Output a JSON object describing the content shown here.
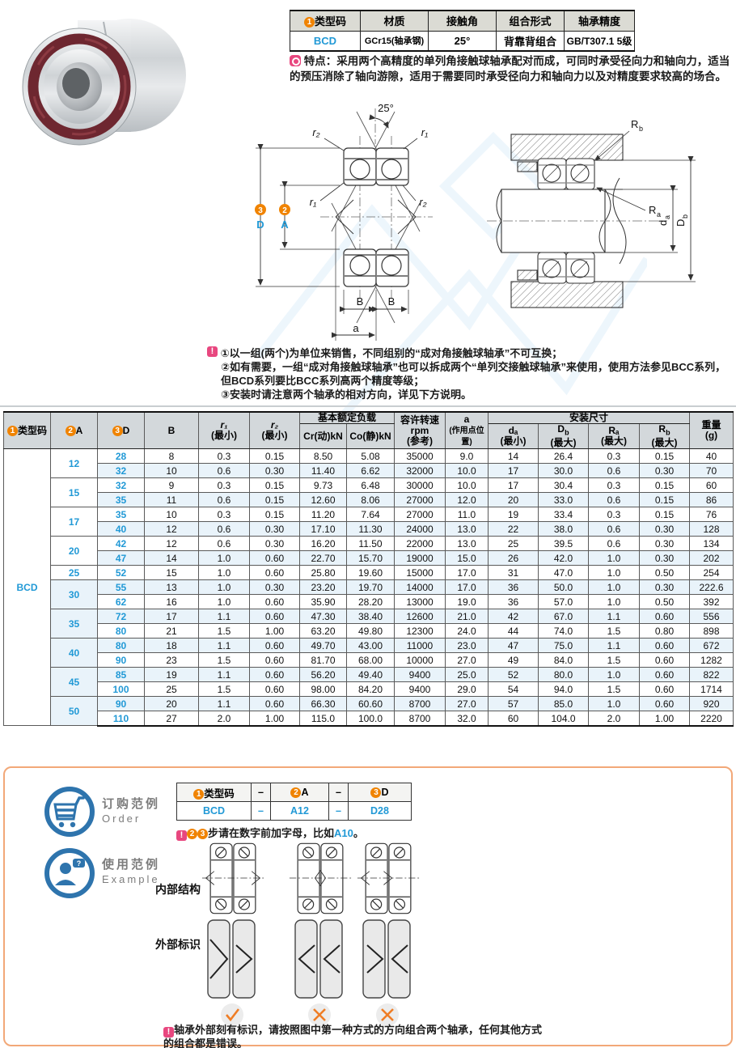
{
  "colors": {
    "accent_blue": "#2199d6",
    "accent_orange": "#f08300",
    "warn_pink": "#e8477f",
    "header_gray": "#d3d8db",
    "row_alt": "#e9f3fa",
    "frame_orange": "#f2a878",
    "icon_blue": "#2e74ad",
    "mark_orange": "#ef7d25",
    "seal_red": "#6e2730"
  },
  "info_table": {
    "headers": [
      {
        "num": "1",
        "text": "类型码"
      },
      {
        "text": "材质"
      },
      {
        "text": "接触角"
      },
      {
        "text": "组合形式"
      },
      {
        "text": "轴承精度"
      }
    ],
    "values": [
      "BCD",
      "GCr15(轴承钢)",
      "25°",
      "背靠背组合",
      "GB/T307.1 5级"
    ]
  },
  "features": {
    "text": "特点：采用两个高精度的单列角接触球轴承配对而成，可同时承受径向力和轴向力，适当的预压消除了轴向游隙，适用于需要同时承受径向力和轴向力以及对精度要求较高的场合。"
  },
  "notes": [
    "①以一组(两个)为单位来销售，不同组别的“成对角接触球轴承”不可互换；",
    "②如有需要，一组“成对角接触球轴承”也可以拆成两个“单列交接触球轴承”来使用，使用方法参见BCC系列，但BCD系列要比BCC系列高两个精度等级；",
    "③安装时请注意两个轴承的相对方向，详见下方说明。"
  ],
  "diagrams": {
    "left": {
      "angle": "25°",
      "r2_top": "r₂",
      "r1_top": "r₁",
      "r1_mid": "r₁",
      "r2_mid": "r₂",
      "dim_D_num": "3",
      "dim_D": "D",
      "dim_A_num": "2",
      "dim_A": "A",
      "B1": "B",
      "B2": "B",
      "a": "a"
    },
    "right": {
      "Rb_base": "R",
      "Rb_sub": "b",
      "Ra_base": "R",
      "Ra_sub": "a",
      "da_base": "d",
      "da_sub": "a",
      "Db_base": "D",
      "Db_sub": "b"
    }
  },
  "main_table": {
    "columns": {
      "type_num": "1",
      "type_label": "类型码",
      "A_num": "2",
      "A_label": "A",
      "D_num": "3",
      "D_label": "D",
      "B": "B",
      "r1": "r₁",
      "r1_min": "(最小)",
      "r2": "r₂",
      "r2_min": "(最小)",
      "load_group": "基本额定负载",
      "cr": "Cr(动)kN",
      "co": "Co(静)kN",
      "rpm_l1": "容许转速",
      "rpm_l2": "rpm",
      "rpm_l3": "(参考)",
      "a_l1": "a",
      "a_l2": "(作用点位置)",
      "mount_group": "安装尺寸",
      "da": "dₐ",
      "da_min": "(最小)",
      "Db_base": "D",
      "Db_sub": "b",
      "Db_max": "(最大)",
      "Ra": "Rₐ",
      "Ra_max": "(最大)",
      "Rb_base": "R",
      "Rb_sub": "b",
      "Rb_max": "(最大)",
      "weight_l1": "重量",
      "weight_l2": "(g)"
    },
    "type_code": "BCD",
    "row_groups": [
      {
        "A": "12",
        "rows": [
          [
            "28",
            "8",
            "0.3",
            "0.15",
            "8.50",
            "5.08",
            "35000",
            "9.0",
            "14",
            "26.4",
            "0.3",
            "0.15",
            "40"
          ],
          [
            "32",
            "10",
            "0.6",
            "0.30",
            "11.40",
            "6.62",
            "32000",
            "10.0",
            "17",
            "30.0",
            "0.6",
            "0.30",
            "70"
          ]
        ]
      },
      {
        "A": "15",
        "rows": [
          [
            "32",
            "9",
            "0.3",
            "0.15",
            "9.73",
            "6.48",
            "30000",
            "10.0",
            "17",
            "30.4",
            "0.3",
            "0.15",
            "60"
          ],
          [
            "35",
            "11",
            "0.6",
            "0.15",
            "12.60",
            "8.06",
            "27000",
            "12.0",
            "20",
            "33.0",
            "0.6",
            "0.15",
            "86"
          ]
        ]
      },
      {
        "A": "17",
        "rows": [
          [
            "35",
            "10",
            "0.3",
            "0.15",
            "11.20",
            "7.64",
            "27000",
            "11.0",
            "19",
            "33.4",
            "0.3",
            "0.15",
            "76"
          ],
          [
            "40",
            "12",
            "0.6",
            "0.30",
            "17.10",
            "11.30",
            "24000",
            "13.0",
            "22",
            "38.0",
            "0.6",
            "0.30",
            "128"
          ]
        ]
      },
      {
        "A": "20",
        "rows": [
          [
            "42",
            "12",
            "0.6",
            "0.30",
            "16.20",
            "11.50",
            "22000",
            "13.0",
            "25",
            "39.5",
            "0.6",
            "0.30",
            "134"
          ],
          [
            "47",
            "14",
            "1.0",
            "0.60",
            "22.70",
            "15.70",
            "19000",
            "15.0",
            "26",
            "42.0",
            "1.0",
            "0.30",
            "202"
          ]
        ]
      },
      {
        "A": "25",
        "rows": [
          [
            "52",
            "15",
            "1.0",
            "0.60",
            "25.80",
            "19.60",
            "15000",
            "17.0",
            "31",
            "47.0",
            "1.0",
            "0.50",
            "254"
          ]
        ]
      },
      {
        "A": "30",
        "rows": [
          [
            "55",
            "13",
            "1.0",
            "0.30",
            "23.20",
            "19.70",
            "14000",
            "17.0",
            "36",
            "50.0",
            "1.0",
            "0.30",
            "222.6"
          ],
          [
            "62",
            "16",
            "1.0",
            "0.60",
            "35.90",
            "28.20",
            "13000",
            "19.0",
            "36",
            "57.0",
            "1.0",
            "0.50",
            "392"
          ]
        ]
      },
      {
        "A": "35",
        "rows": [
          [
            "72",
            "17",
            "1.1",
            "0.60",
            "47.30",
            "38.40",
            "12600",
            "21.0",
            "42",
            "67.0",
            "1.1",
            "0.60",
            "556"
          ],
          [
            "80",
            "21",
            "1.5",
            "1.00",
            "63.20",
            "49.80",
            "12300",
            "24.0",
            "44",
            "74.0",
            "1.5",
            "0.80",
            "898"
          ]
        ]
      },
      {
        "A": "40",
        "rows": [
          [
            "80",
            "18",
            "1.1",
            "0.60",
            "49.70",
            "43.00",
            "11000",
            "23.0",
            "47",
            "75.0",
            "1.1",
            "0.60",
            "672"
          ],
          [
            "90",
            "23",
            "1.5",
            "0.60",
            "81.70",
            "68.00",
            "10000",
            "27.0",
            "49",
            "84.0",
            "1.5",
            "0.60",
            "1282"
          ]
        ]
      },
      {
        "A": "45",
        "rows": [
          [
            "85",
            "19",
            "1.1",
            "0.60",
            "56.20",
            "49.40",
            "9400",
            "25.0",
            "52",
            "80.0",
            "1.0",
            "0.60",
            "822"
          ],
          [
            "100",
            "25",
            "1.5",
            "0.60",
            "98.00",
            "84.20",
            "9400",
            "29.0",
            "54",
            "94.0",
            "1.5",
            "0.60",
            "1714"
          ]
        ]
      },
      {
        "A": "50",
        "rows": [
          [
            "90",
            "20",
            "1.1",
            "0.60",
            "66.30",
            "60.60",
            "8700",
            "27.0",
            "57",
            "85.0",
            "1.0",
            "0.60",
            "920"
          ],
          [
            "110",
            "27",
            "2.0",
            "1.00",
            "115.0",
            "100.0",
            "8700",
            "32.0",
            "60",
            "104.0",
            "2.0",
            "1.00",
            "2220"
          ]
        ]
      }
    ]
  },
  "order_example": {
    "label_zh": "订购范例",
    "label_en": "Order",
    "table_headers": [
      {
        "num": "1",
        "text": "类型码"
      },
      {
        "text": "–"
      },
      {
        "num": "2",
        "text": "A"
      },
      {
        "text": "–"
      },
      {
        "num": "3",
        "text": "D"
      }
    ],
    "table_values": [
      "BCD",
      "–",
      "A12",
      "–",
      "D28"
    ],
    "note": {
      "num2": "2",
      "num3": "3",
      "text": "步请在数字前加字母，比如",
      "code": "A10",
      "suffix": "。"
    }
  },
  "usage_example": {
    "label_zh": "使用范例",
    "label_en": "Example",
    "internal_label": "内部结构",
    "external_label": "外部标识",
    "marks": [
      {
        "result": "check"
      },
      {
        "result": "cross"
      },
      {
        "result": "cross"
      }
    ],
    "note": "轴承外部刻有标识，请按照图中第一种方式的方向组合两个轴承，任何其他方式的组合都是错误。"
  }
}
